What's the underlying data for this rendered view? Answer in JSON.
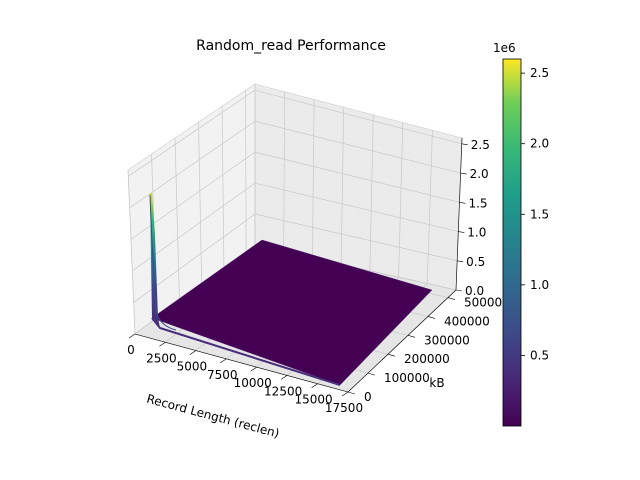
{
  "chart_data": {
    "type": "surface3d",
    "title": "Random_read Performance",
    "xlabel": "Record Length (reclen)",
    "ylabel": "kB",
    "zlabel": "",
    "x_ticks": [
      "0",
      "2500",
      "5000",
      "7500",
      "10000",
      "12500",
      "15000",
      "17500"
    ],
    "x_tick_values": [
      0,
      2500,
      5000,
      7500,
      10000,
      12500,
      15000,
      17500
    ],
    "y_ticks": [
      "0",
      "100000",
      "200000",
      "300000",
      "400000",
      "500000"
    ],
    "y_tick_values": [
      0,
      100000,
      200000,
      300000,
      400000,
      500000
    ],
    "z_ticks": [
      "0.0",
      "0.5",
      "1.0",
      "1.5",
      "2.0",
      "2.5"
    ],
    "z_tick_values": [
      0.0,
      0.5,
      1.0,
      1.5,
      2.0,
      2.5
    ],
    "z_offset_label": "1e6",
    "xlim": [
      0,
      17500
    ],
    "ylim": [
      0,
      540000
    ],
    "zlim": [
      0,
      2.6
    ],
    "colormap": "viridis",
    "grid": true,
    "colorbar": {
      "ticks": [
        "0.5",
        "1.0",
        "1.5",
        "2.0",
        "2.5"
      ],
      "tick_values": [
        0.5,
        1.0,
        1.5,
        2.0,
        2.5
      ],
      "range": [
        0.0,
        2.6
      ],
      "offset_label": "1e6"
    },
    "surface_samples": [
      {
        "reclen": 0,
        "file_kb": 0,
        "value_1e6": 2.5
      },
      {
        "reclen": 500,
        "file_kb": 0,
        "value_1e6": 0.4
      },
      {
        "reclen": 1000,
        "file_kb": 0,
        "value_1e6": 0.1
      },
      {
        "reclen": 2000,
        "file_kb": 0,
        "value_1e6": 0.05
      },
      {
        "reclen": 0,
        "file_kb": 500000,
        "value_1e6": 0.1
      },
      {
        "reclen": 17500,
        "file_kb": 540000,
        "value_1e6": 0.02
      }
    ]
  }
}
